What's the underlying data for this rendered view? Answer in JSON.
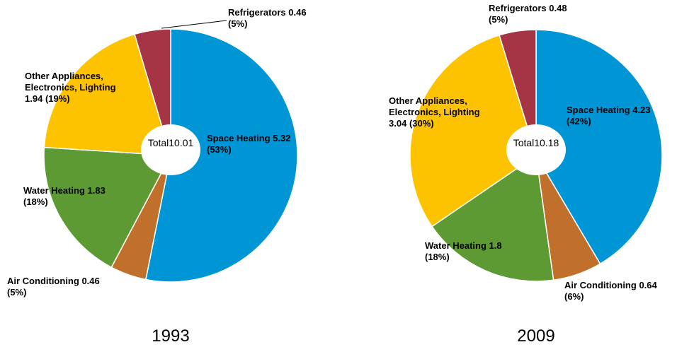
{
  "chart_data": [
    {
      "type": "pie",
      "title": "1993",
      "center_label": "Total",
      "total": 10.01,
      "categories": [
        "Space Heating",
        "Air Conditioning",
        "Water Heating",
        "Other Appliances, Electronics, Lighting",
        "Refrigerators"
      ],
      "values": [
        5.32,
        0.46,
        1.83,
        1.94,
        0.46
      ],
      "percent_labels": [
        "(53%)",
        "(5%)",
        "(18%)",
        "(19%)",
        "(5%)"
      ],
      "colors": [
        "#0096d6",
        "#c0702a",
        "#5e9a34",
        "#fdc300",
        "#a53545"
      ]
    },
    {
      "type": "pie",
      "title": "2009",
      "center_label": "Total",
      "total": 10.18,
      "categories": [
        "Space Heating",
        "Air Conditioning",
        "Water Heating",
        "Other Appliances, Electronics, Lighting",
        "Refrigerators"
      ],
      "values": [
        4.23,
        0.64,
        1.8,
        3.04,
        0.48
      ],
      "percent_labels": [
        "(42%)",
        "(6%)",
        "(18%)",
        "(30%)",
        "(5%)"
      ],
      "colors": [
        "#0096d6",
        "#c0702a",
        "#5e9a34",
        "#fdc300",
        "#a53545"
      ]
    }
  ]
}
